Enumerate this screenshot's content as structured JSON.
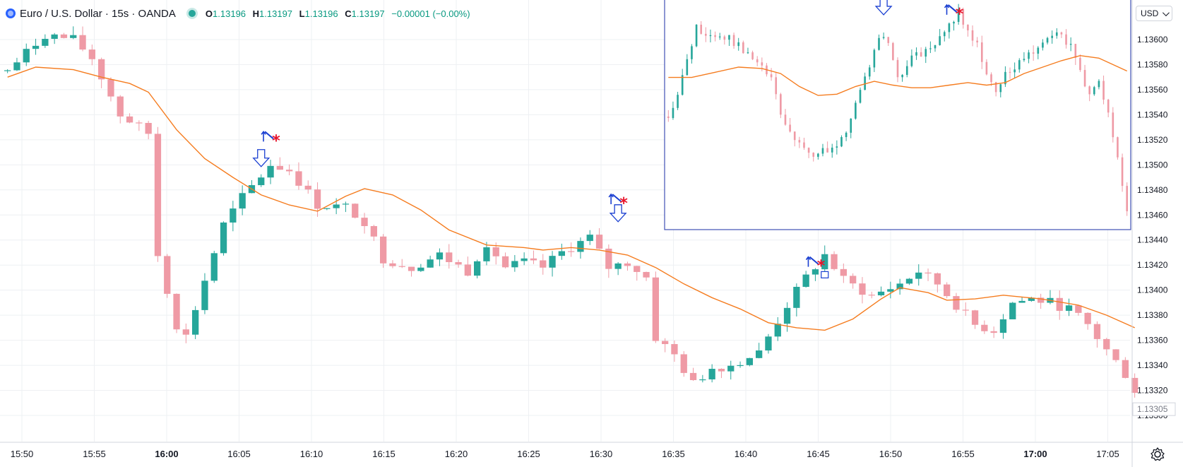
{
  "header": {
    "symbol_title": "Euro / U.S. Dollar · 15s · OANDA",
    "ohlc": [
      {
        "key": "O",
        "value": "1.13196"
      },
      {
        "key": "H",
        "value": "1.13197"
      },
      {
        "key": "L",
        "value": "1.13196"
      },
      {
        "key": "C",
        "value": "1.13197"
      }
    ],
    "change": "−0.00001 (−0.00%)"
  },
  "price_scale": {
    "currency": "USD",
    "current_price_label": "1.13305"
  },
  "icons": {
    "logo": "tradingview-logo-icon",
    "status": "market-open-dot-icon",
    "currency_dropdown": "chevron-down-icon",
    "settings": "gear-icon"
  },
  "colors": {
    "up": "#26a69a",
    "down": "#ef9aa5",
    "ma_line": "#f57c1f",
    "inset_border": "#3f51b5",
    "signal_blue": "#1a3fd1",
    "signal_red": "#e8142b",
    "grid": "#eef0f3"
  },
  "chart_data": {
    "type": "candlestick",
    "title": "Euro / U.S. Dollar · 15s · OANDA",
    "x_tick_labels": [
      "15:50",
      "15:55",
      "16:00",
      "16:05",
      "16:10",
      "16:15",
      "16:20",
      "16:25",
      "16:30",
      "16:35",
      "16:40",
      "16:45",
      "16:50",
      "16:55",
      "17:00",
      "17:05"
    ],
    "bold_x_ticks": [
      "16:00",
      "17:00"
    ],
    "y_tick_labels": [
      "1.13600",
      "1.13580",
      "1.13560",
      "1.13540",
      "1.13520",
      "1.13500",
      "1.13480",
      "1.13460",
      "1.13440",
      "1.13420",
      "1.13400",
      "1.13380",
      "1.13360",
      "1.13340",
      "1.13320",
      "1.13300"
    ],
    "ylim": [
      1.1329,
      1.13618
    ],
    "grid": true,
    "main_close_anchors": [
      [
        0,
        1.13575
      ],
      [
        4,
        1.13604
      ],
      [
        7,
        1.136
      ],
      [
        9,
        1.13585
      ],
      [
        12,
        1.1354
      ],
      [
        15,
        1.13525
      ],
      [
        16,
        1.13428
      ],
      [
        18,
        1.13372
      ],
      [
        19,
        1.13363
      ],
      [
        21,
        1.13408
      ],
      [
        23,
        1.13452
      ],
      [
        25,
        1.13474
      ],
      [
        28,
        1.135
      ],
      [
        30,
        1.13496
      ],
      [
        33,
        1.13468
      ],
      [
        36,
        1.13466
      ],
      [
        38,
        1.13455
      ],
      [
        40,
        1.13425
      ],
      [
        43,
        1.13418
      ],
      [
        46,
        1.13428
      ],
      [
        49,
        1.13415
      ],
      [
        51,
        1.13438
      ],
      [
        53,
        1.13418
      ],
      [
        55,
        1.13422
      ],
      [
        57,
        1.13418
      ],
      [
        59,
        1.1343
      ],
      [
        62,
        1.13442
      ],
      [
        64,
        1.13418
      ],
      [
        66,
        1.13422
      ],
      [
        68,
        1.1341
      ],
      [
        69,
        1.13362
      ],
      [
        71,
        1.13348
      ],
      [
        73,
        1.13325
      ],
      [
        75,
        1.13338
      ],
      [
        77,
        1.1334
      ],
      [
        80,
        1.1335
      ],
      [
        83,
        1.13388
      ],
      [
        85,
        1.1341
      ],
      [
        87,
        1.13428
      ],
      [
        89,
        1.13408
      ],
      [
        92,
        1.13395
      ],
      [
        95,
        1.13405
      ],
      [
        97,
        1.13415
      ],
      [
        99,
        1.13405
      ],
      [
        101,
        1.13388
      ],
      [
        103,
        1.13372
      ],
      [
        105,
        1.13368
      ],
      [
        107,
        1.1339
      ],
      [
        109,
        1.13393
      ],
      [
        111,
        1.1339
      ],
      [
        113,
        1.13385
      ],
      [
        115,
        1.13372
      ],
      [
        117,
        1.13352
      ],
      [
        119,
        1.13333
      ],
      [
        120,
        1.1332
      ]
    ],
    "main_ma_line": [
      [
        0,
        1.1357
      ],
      [
        3,
        1.13578
      ],
      [
        7,
        1.13576
      ],
      [
        10,
        1.1357
      ],
      [
        13,
        1.13565
      ],
      [
        15,
        1.13558
      ],
      [
        18,
        1.13528
      ],
      [
        21,
        1.13505
      ],
      [
        24,
        1.1349
      ],
      [
        27,
        1.13476
      ],
      [
        30,
        1.13468
      ],
      [
        33,
        1.13463
      ],
      [
        36,
        1.13475
      ],
      [
        38,
        1.13481
      ],
      [
        41,
        1.13476
      ],
      [
        44,
        1.13464
      ],
      [
        47,
        1.13448
      ],
      [
        51,
        1.13436
      ],
      [
        55,
        1.13434
      ],
      [
        57,
        1.13432
      ],
      [
        60,
        1.13434
      ],
      [
        63,
        1.13432
      ],
      [
        66,
        1.13428
      ],
      [
        69,
        1.13418
      ],
      [
        72,
        1.13405
      ],
      [
        75,
        1.13394
      ],
      [
        78,
        1.13385
      ],
      [
        81,
        1.13374
      ],
      [
        84,
        1.1337
      ],
      [
        87,
        1.13368
      ],
      [
        90,
        1.13377
      ],
      [
        93,
        1.13393
      ],
      [
        95,
        1.13402
      ],
      [
        98,
        1.13398
      ],
      [
        100,
        1.13392
      ],
      [
        103,
        1.13393
      ],
      [
        106,
        1.13396
      ],
      [
        110,
        1.13393
      ],
      [
        114,
        1.13388
      ],
      [
        117,
        1.1338
      ],
      [
        120,
        1.1337
      ]
    ],
    "inset_close_anchors": [
      [
        0,
        1.13528
      ],
      [
        3,
        1.1356
      ],
      [
        6,
        1.13598
      ],
      [
        10,
        1.13592
      ],
      [
        13,
        1.1359
      ],
      [
        16,
        1.13582
      ],
      [
        19,
        1.1357
      ],
      [
        22,
        1.1356
      ],
      [
        24,
        1.1353
      ],
      [
        27,
        1.1351
      ],
      [
        30,
        1.135
      ],
      [
        33,
        1.13502
      ],
      [
        36,
        1.13505
      ],
      [
        38,
        1.1352
      ],
      [
        40,
        1.1354
      ],
      [
        43,
        1.1357
      ],
      [
        45,
        1.13592
      ],
      [
        47,
        1.13588
      ],
      [
        49,
        1.1356
      ],
      [
        52,
        1.13575
      ],
      [
        55,
        1.1358
      ],
      [
        58,
        1.1359
      ],
      [
        60,
        1.136
      ],
      [
        62,
        1.13612
      ],
      [
        64,
        1.13595
      ],
      [
        66,
        1.13588
      ],
      [
        68,
        1.1356
      ],
      [
        70,
        1.13548
      ],
      [
        72,
        1.13562
      ],
      [
        75,
        1.13573
      ],
      [
        78,
        1.1358
      ],
      [
        80,
        1.1359
      ],
      [
        83,
        1.13598
      ],
      [
        86,
        1.13583
      ],
      [
        88,
        1.13565
      ],
      [
        90,
        1.13545
      ],
      [
        92,
        1.13555
      ],
      [
        94,
        1.13535
      ],
      [
        96,
        1.13495
      ],
      [
        98,
        1.13455
      ]
    ],
    "inset_ma_line": [
      [
        0,
        1.1356
      ],
      [
        5,
        1.1356
      ],
      [
        10,
        1.13564
      ],
      [
        15,
        1.13568
      ],
      [
        20,
        1.13567
      ],
      [
        24,
        1.13563
      ],
      [
        28,
        1.13553
      ],
      [
        32,
        1.13546
      ],
      [
        36,
        1.13547
      ],
      [
        40,
        1.13553
      ],
      [
        44,
        1.13557
      ],
      [
        48,
        1.13554
      ],
      [
        52,
        1.13552
      ],
      [
        56,
        1.13552
      ],
      [
        60,
        1.13554
      ],
      [
        64,
        1.13556
      ],
      [
        68,
        1.13554
      ],
      [
        72,
        1.13556
      ],
      [
        76,
        1.13563
      ],
      [
        80,
        1.13568
      ],
      [
        84,
        1.13573
      ],
      [
        88,
        1.13577
      ],
      [
        92,
        1.13575
      ],
      [
        95,
        1.1357
      ],
      [
        98,
        1.13565
      ]
    ],
    "inset_ylim": [
      1.13445,
      1.13618
    ],
    "signals": [
      {
        "chart": "main",
        "candle": 27,
        "kind": "down-arrow",
        "price": 1.13502
      },
      {
        "chart": "main",
        "candle": 28,
        "kind": "up-arrow-star",
        "price": 1.13522
      },
      {
        "chart": "main",
        "candle": 65,
        "kind": "down-arrow",
        "price": 1.13458
      },
      {
        "chart": "main",
        "candle": 65,
        "kind": "up-arrow-star",
        "price": 1.13472
      },
      {
        "chart": "main",
        "candle": 86,
        "kind": "up-arrow-star",
        "price": 1.13422
      },
      {
        "chart": "main",
        "candle": 87,
        "kind": "square",
        "price": 1.13412
      },
      {
        "chart": "inset",
        "candle": 46,
        "kind": "down-arrow",
        "price": 1.13612
      },
      {
        "chart": "inset",
        "candle": 61,
        "kind": "up-arrow-star",
        "price": 1.13612
      }
    ]
  }
}
